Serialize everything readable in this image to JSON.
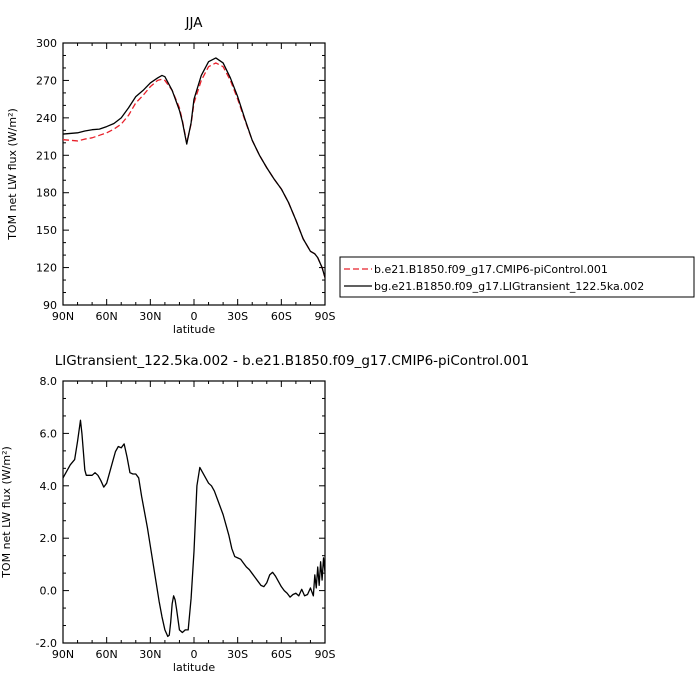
{
  "figure": {
    "top_title": "JJA",
    "bottom_title": "LIGtransient_122.5ka.002 - b.e21.B1850.f09_g17.CMIP6-piControl.001"
  },
  "chart_data": [
    {
      "type": "line",
      "title": "JJA",
      "xlabel": "latitude",
      "ylabel": "TOM net LW flux (W/m²)",
      "xlim": [
        90,
        -90
      ],
      "ylim": [
        90,
        300
      ],
      "x_ticks": [
        90,
        60,
        30,
        0,
        -30,
        -60,
        -90
      ],
      "x_tick_labels": [
        "90N",
        "60N",
        "30N",
        "0",
        "30S",
        "60S",
        "90S"
      ],
      "y_ticks": [
        90,
        120,
        150,
        180,
        210,
        240,
        270,
        300
      ],
      "y_tick_labels": [
        "90",
        "120",
        "150",
        "180",
        "210",
        "240",
        "270",
        "300"
      ],
      "legend_position": "right",
      "series": [
        {
          "name": "b.e21.B1850.f09_g17.CMIP6-piControl.001",
          "color": "#e8202a",
          "dash": "dashed",
          "x": [
            90,
            85,
            80,
            75,
            70,
            65,
            60,
            55,
            50,
            45,
            40,
            35,
            30,
            25,
            22,
            20,
            15,
            10,
            8,
            5,
            2,
            0,
            -5,
            -10,
            -15,
            -20,
            -25,
            -30,
            -35,
            -40,
            -45,
            -50,
            -55,
            -60,
            -65,
            -70,
            -75,
            -78,
            -80,
            -83,
            -85,
            -88,
            -90
          ],
          "y": [
            222.5,
            222,
            221.5,
            223,
            224,
            226,
            228,
            231,
            235,
            242,
            252,
            258,
            265,
            270,
            271,
            270,
            262,
            248,
            238,
            220,
            235,
            252,
            270,
            281,
            284,
            281,
            270,
            255,
            238,
            222,
            210,
            200,
            191,
            183,
            172,
            158,
            143,
            137,
            133,
            131,
            128,
            120,
            112
          ]
        },
        {
          "name": "bg.e21.B1850.f09_g17.LIGtransient_122.5ka.002",
          "color": "#000000",
          "dash": "solid",
          "x": [
            90,
            85,
            80,
            75,
            70,
            65,
            60,
            55,
            50,
            45,
            40,
            35,
            30,
            25,
            22,
            20,
            15,
            10,
            8,
            5,
            2,
            0,
            -5,
            -10,
            -15,
            -20,
            -25,
            -30,
            -35,
            -40,
            -45,
            -50,
            -55,
            -60,
            -65,
            -70,
            -75,
            -78,
            -80,
            -83,
            -85,
            -88,
            -90
          ],
          "y": [
            227,
            227.5,
            228,
            229.5,
            230.5,
            231,
            233,
            235.5,
            240,
            248,
            257,
            262,
            268,
            272,
            274,
            273,
            262,
            246,
            237,
            219,
            236,
            255,
            274,
            285,
            288,
            284,
            272,
            257,
            239,
            222,
            210,
            200,
            191,
            183,
            172,
            158,
            143,
            137,
            133,
            131,
            128,
            120,
            112
          ]
        }
      ]
    },
    {
      "type": "line",
      "title": "LIGtransient_122.5ka.002 - b.e21.B1850.f09_g17.CMIP6-piControl.001",
      "xlabel": "latitude",
      "ylabel": "TOM net LW flux (W/m²)",
      "xlim": [
        90,
        -90
      ],
      "ylim": [
        -2,
        8
      ],
      "x_ticks": [
        90,
        60,
        30,
        0,
        -30,
        -60,
        -90
      ],
      "x_tick_labels": [
        "90N",
        "60N",
        "30N",
        "0",
        "30S",
        "60S",
        "90S"
      ],
      "y_ticks": [
        -2,
        0,
        2,
        4,
        6,
        8
      ],
      "y_tick_labels": [
        "-2.0",
        "0.0",
        "2.0",
        "4.0",
        "6.0",
        "8.0"
      ],
      "series": [
        {
          "color": "#000000",
          "dash": "solid",
          "x": [
            90,
            88,
            85,
            82,
            80,
            78,
            77,
            76,
            75,
            74,
            72,
            70,
            68,
            66,
            64,
            62,
            60,
            58,
            56,
            54,
            52,
            50,
            48,
            46,
            44,
            42,
            40,
            38,
            36,
            34,
            32,
            30,
            28,
            26,
            24,
            22,
            20,
            18,
            17,
            16,
            15,
            14,
            13,
            12,
            10,
            8,
            6,
            4,
            2,
            0,
            -2,
            -4,
            -6,
            -8,
            -10,
            -12,
            -14,
            -16,
            -18,
            -20,
            -22,
            -24,
            -26,
            -28,
            -30,
            -32,
            -34,
            -36,
            -38,
            -40,
            -42,
            -44,
            -46,
            -48,
            -50,
            -52,
            -54,
            -56,
            -58,
            -60,
            -62,
            -64,
            -66,
            -68,
            -70,
            -72,
            -74,
            -76,
            -78,
            -80,
            -82,
            -83,
            -84,
            -85,
            -86,
            -87,
            -88,
            -89,
            -90
          ],
          "y": [
            4.3,
            4.5,
            4.8,
            5.0,
            5.7,
            6.5,
            6.0,
            5.3,
            4.6,
            4.4,
            4.4,
            4.4,
            4.5,
            4.4,
            4.2,
            3.95,
            4.1,
            4.5,
            4.9,
            5.3,
            5.5,
            5.45,
            5.6,
            5.1,
            4.5,
            4.45,
            4.45,
            4.3,
            3.6,
            3.0,
            2.4,
            1.7,
            1.0,
            0.3,
            -0.4,
            -1.0,
            -1.5,
            -1.75,
            -1.7,
            -1.2,
            -0.5,
            -0.2,
            -0.35,
            -0.7,
            -1.5,
            -1.6,
            -1.5,
            -1.5,
            -0.3,
            1.5,
            4.0,
            4.7,
            4.5,
            4.3,
            4.1,
            4.0,
            3.8,
            3.5,
            3.2,
            2.9,
            2.5,
            2.1,
            1.6,
            1.3,
            1.25,
            1.2,
            1.05,
            0.9,
            0.8,
            0.65,
            0.5,
            0.35,
            0.2,
            0.15,
            0.3,
            0.6,
            0.7,
            0.55,
            0.35,
            0.15,
            0.0,
            -0.1,
            -0.25,
            -0.15,
            -0.1,
            -0.2,
            0.05,
            -0.2,
            -0.15,
            0.1,
            -0.2,
            0.6,
            0.1,
            0.9,
            0.2,
            1.1,
            0.4,
            1.25,
            0.7
          ]
        }
      ]
    }
  ]
}
